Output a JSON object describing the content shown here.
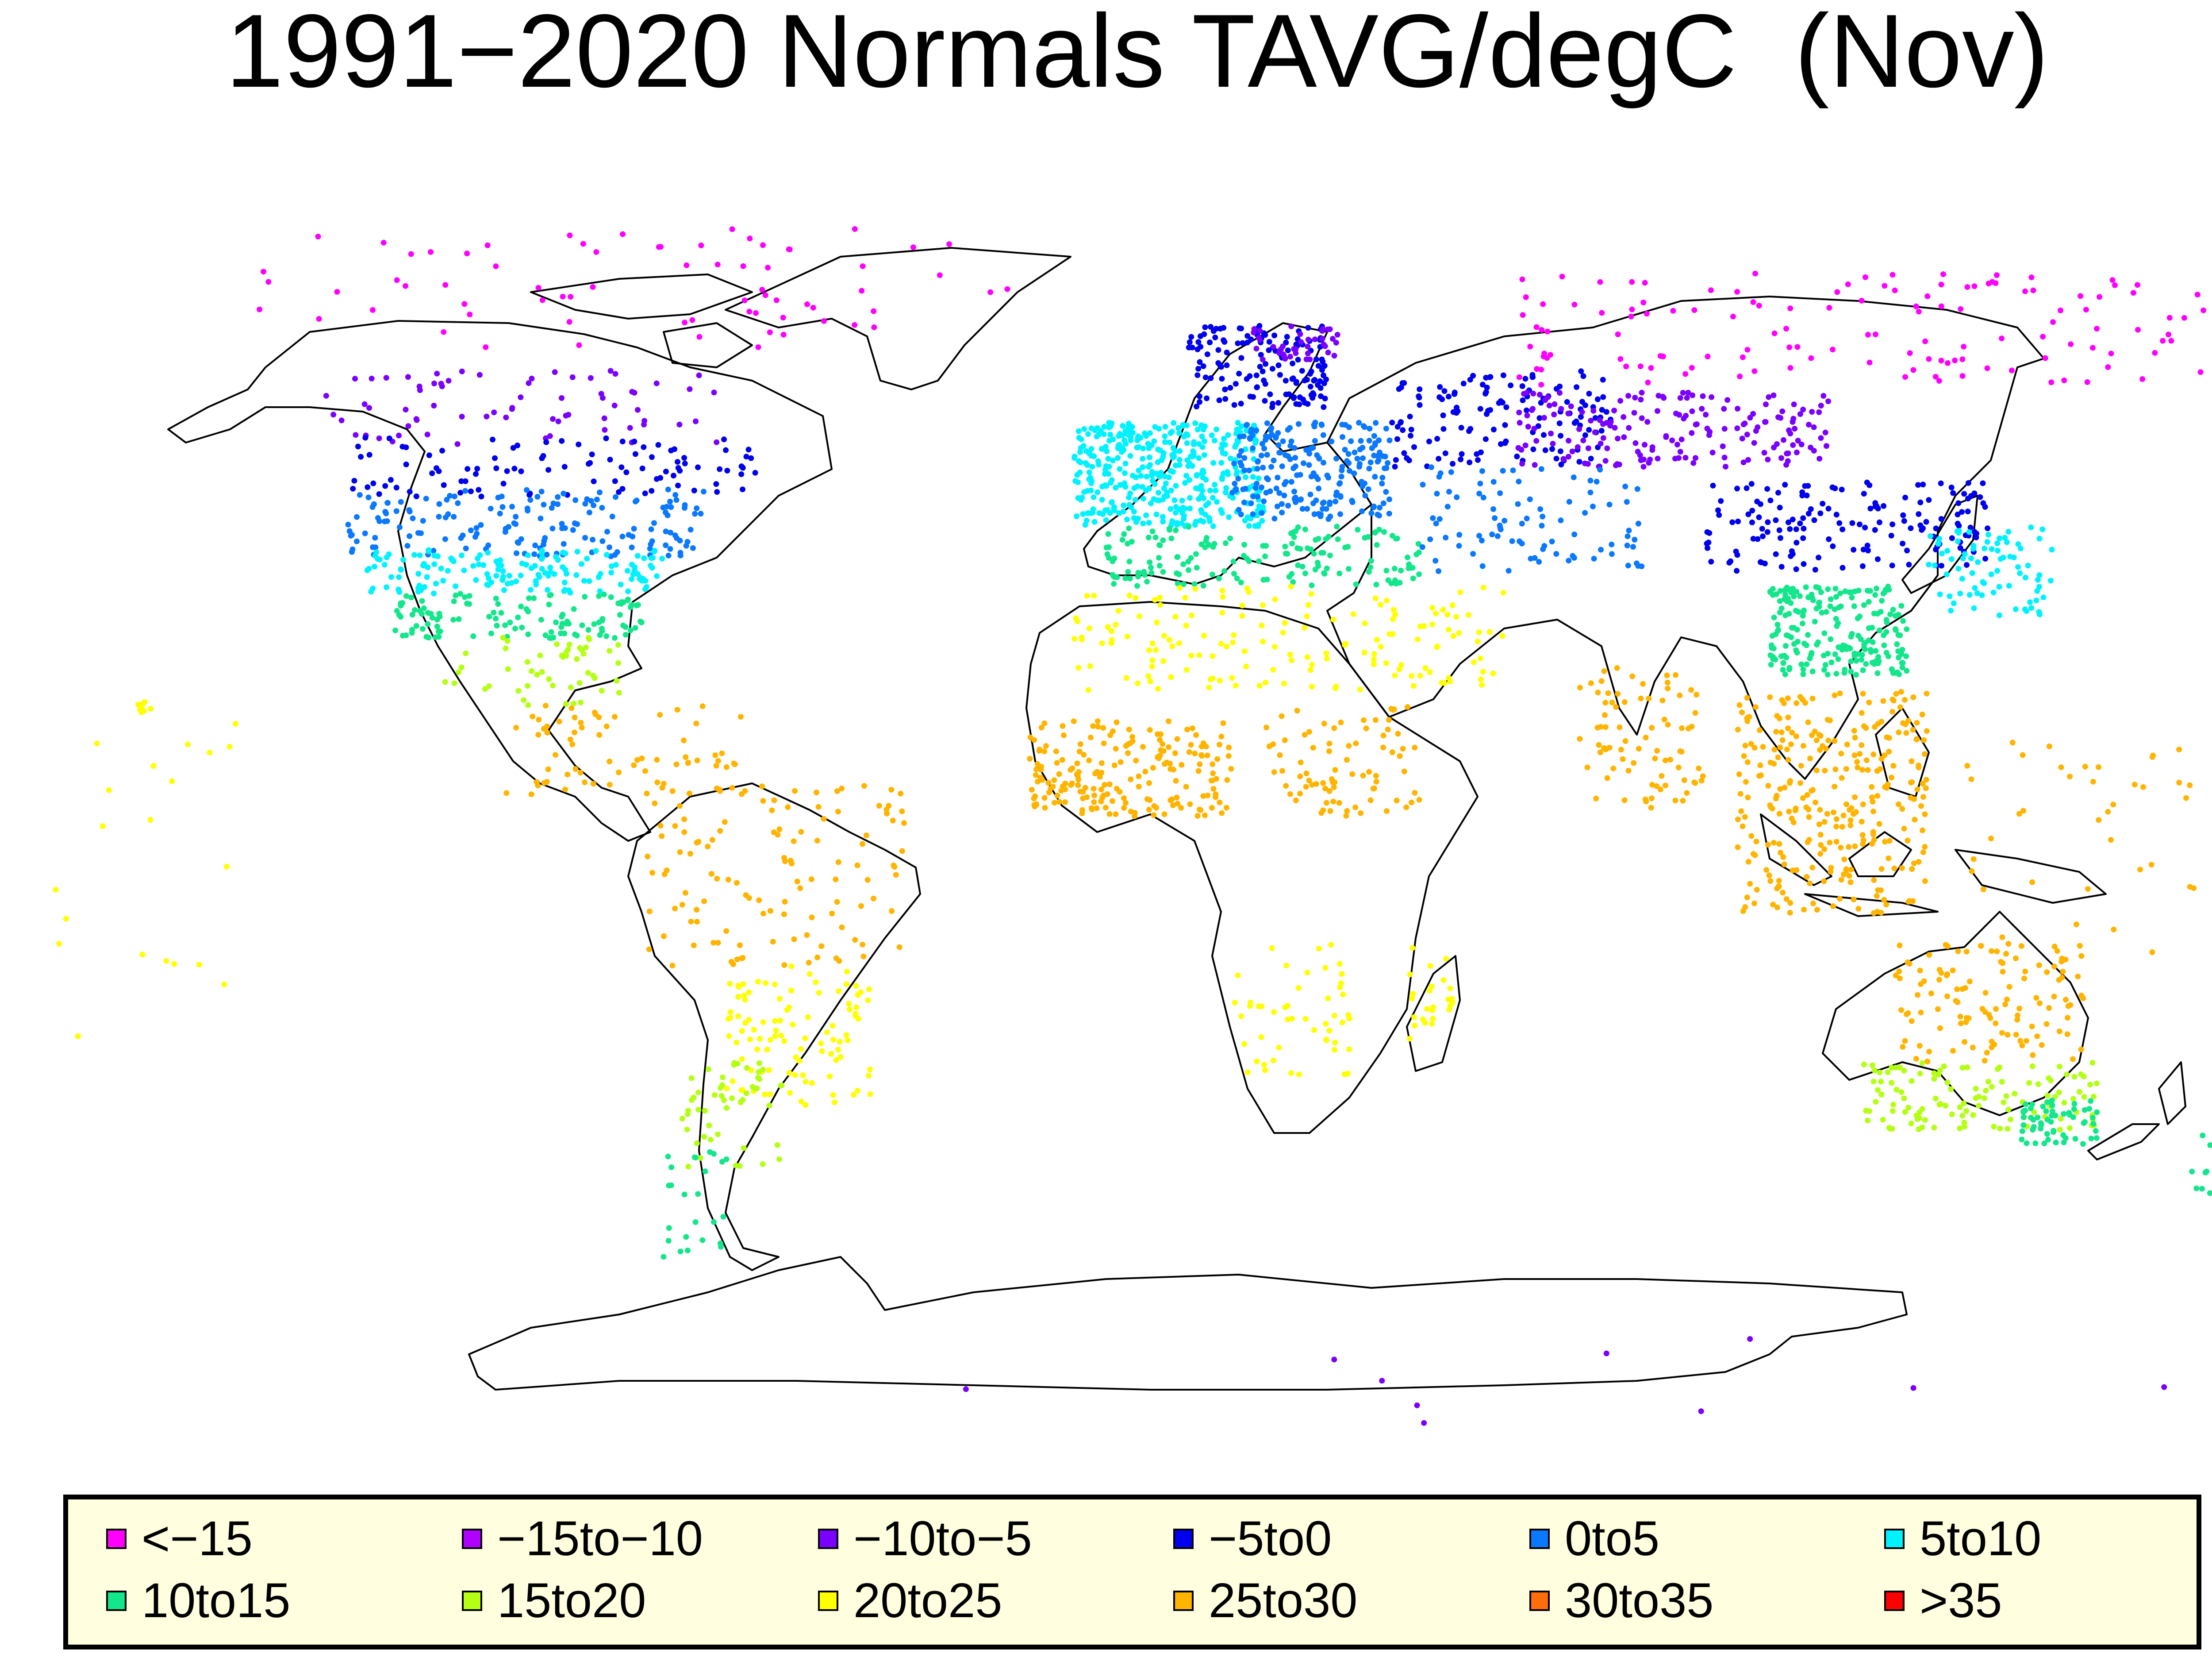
{
  "title": "1991−2020 Normals TAVG/degC  (Nov)",
  "legend": {
    "items": [
      {
        "label": "<−15",
        "color": "#ff00ff"
      },
      {
        "label": "−15to−10",
        "color": "#b000ff"
      },
      {
        "label": "−10to−5",
        "color": "#7a00ff"
      },
      {
        "label": "−5to0",
        "color": "#0000ee"
      },
      {
        "label": "0to5",
        "color": "#0a78ff"
      },
      {
        "label": "5to10",
        "color": "#00f2ff"
      },
      {
        "label": "10to15",
        "color": "#14e68c"
      },
      {
        "label": "15to20",
        "color": "#b4ff14"
      },
      {
        "label": "20to25",
        "color": "#ffff00"
      },
      {
        "label": "25to30",
        "color": "#ffb400"
      },
      {
        "label": "30to35",
        "color": "#ff6e0a"
      },
      {
        "label": ">35",
        "color": "#ff0000"
      }
    ]
  },
  "map": {
    "projection": "equirectangular-like world map",
    "lon_range": [
      -180,
      180
    ],
    "lat_range": [
      -85,
      85
    ],
    "station_groups": [
      {
        "region": "Arctic Canada / Greenland",
        "bin": "<−15",
        "lon": [
          -140,
          -20
        ],
        "lat": [
          68,
          84
        ],
        "count": 70
      },
      {
        "region": "Northern Canada",
        "bin": "−10to−5",
        "lon": [
          -130,
          -65
        ],
        "lat": [
          55,
          65
        ],
        "count": 70
      },
      {
        "region": "Southern Canada",
        "bin": "−5to0",
        "lon": [
          -125,
          -60
        ],
        "lat": [
          48,
          56
        ],
        "count": 100
      },
      {
        "region": "Northern USA",
        "bin": "0to5",
        "lon": [
          -125,
          -68
        ],
        "lat": [
          40,
          49
        ],
        "count": 170
      },
      {
        "region": "Central USA",
        "bin": "5to10",
        "lon": [
          -122,
          -75
        ],
        "lat": [
          35,
          41
        ],
        "count": 150
      },
      {
        "region": "Southern USA",
        "bin": "10to15",
        "lon": [
          -118,
          -78
        ],
        "lat": [
          29,
          35
        ],
        "count": 120
      },
      {
        "region": "Gulf coast / Mexico",
        "bin": "15to20",
        "lon": [
          -110,
          -82
        ],
        "lat": [
          20,
          30
        ],
        "count": 50
      },
      {
        "region": "Central America / Caribbean",
        "bin": "25to30",
        "lon": [
          -100,
          -62
        ],
        "lat": [
          8,
          20
        ],
        "count": 70
      },
      {
        "region": "Northern South America",
        "bin": "25to30",
        "lon": [
          -78,
          -36
        ],
        "lat": [
          -15,
          10
        ],
        "count": 120
      },
      {
        "region": "Southeast South America",
        "bin": "20to25",
        "lon": [
          -65,
          -42
        ],
        "lat": [
          -34,
          -15
        ],
        "count": 100
      },
      {
        "region": "Southern South America",
        "bin": "15to20",
        "lon": [
          -72,
          -56
        ],
        "lat": [
          -42,
          -28
        ],
        "count": 50
      },
      {
        "region": "Patagonia",
        "bin": "10to15",
        "lon": [
          -75,
          -64
        ],
        "lat": [
          -55,
          -40
        ],
        "count": 25
      },
      {
        "region": "Scandinavia",
        "bin": "−5to0",
        "lon": [
          8,
          30
        ],
        "lat": [
          60,
          71
        ],
        "count": 150
      },
      {
        "region": "Northern Scandinavia",
        "bin": "−10to−5",
        "lon": [
          18,
          32
        ],
        "lat": [
          66,
          71
        ],
        "count": 40
      },
      {
        "region": "Western Europe",
        "bin": "5to10",
        "lon": [
          -10,
          20
        ],
        "lat": [
          44,
          58
        ],
        "count": 400
      },
      {
        "region": "Central / Eastern Europe",
        "bin": "0to5",
        "lon": [
          15,
          40
        ],
        "lat": [
          45,
          58
        ],
        "count": 220
      },
      {
        "region": "Mediterranean / Black Sea",
        "bin": "10to15",
        "lon": [
          -5,
          45
        ],
        "lat": [
          36,
          44
        ],
        "count": 160
      },
      {
        "region": "North Africa / Middle East",
        "bin": "20to25",
        "lon": [
          -10,
          58
        ],
        "lat": [
          22,
          36
        ],
        "count": 160
      },
      {
        "region": "Western Russia",
        "bin": "−5to0",
        "lon": [
          40,
          75
        ],
        "lat": [
          52,
          65
        ],
        "count": 140
      },
      {
        "region": "Central Siberia",
        "bin": "−10to−5",
        "lon": [
          60,
          110
        ],
        "lat": [
          52,
          62
        ],
        "count": 180
      },
      {
        "region": "Northern Siberia",
        "bin": "<−15",
        "lon": [
          60,
          170
        ],
        "lat": [
          63,
          78
        ],
        "count": 130
      },
      {
        "region": "Central Asia",
        "bin": "0to5",
        "lon": [
          45,
          80
        ],
        "lat": [
          38,
          52
        ],
        "count": 90
      },
      {
        "region": "Mongolia / NE China",
        "bin": "−5to0",
        "lon": [
          90,
          135
        ],
        "lat": [
          38,
          50
        ],
        "count": 160
      },
      {
        "region": "Central / Southern China",
        "bin": "10to15",
        "lon": [
          100,
          122
        ],
        "lat": [
          24,
          36
        ],
        "count": 220
      },
      {
        "region": "Japan / Korea",
        "bin": "5to10",
        "lon": [
          125,
          145
        ],
        "lat": [
          32,
          44
        ],
        "count": 80
      },
      {
        "region": "West Africa / Sahel",
        "bin": "25to30",
        "lon": [
          -17,
          15
        ],
        "lat": [
          5,
          18
        ],
        "count": 200
      },
      {
        "region": "East Africa / Sudan",
        "bin": "25to30",
        "lon": [
          20,
          45
        ],
        "lat": [
          5,
          20
        ],
        "count": 80
      },
      {
        "region": "Southern Africa",
        "bin": "20to25",
        "lon": [
          15,
          34
        ],
        "lat": [
          -30,
          -12
        ],
        "count": 50
      },
      {
        "region": "Madagascar",
        "bin": "20to25",
        "lon": [
          43,
          50
        ],
        "lat": [
          -25,
          -12
        ],
        "count": 25
      },
      {
        "region": "India / Sri Lanka",
        "bin": "25to30",
        "lon": [
          70,
          90
        ],
        "lat": [
          6,
          25
        ],
        "count": 80
      },
      {
        "region": "Southeast Asia",
        "bin": "25to30",
        "lon": [
          95,
          125
        ],
        "lat": [
          -8,
          22
        ],
        "count": 300
      },
      {
        "region": "Western Pacific islands",
        "bin": "25to30",
        "lon": [
          130,
          178
        ],
        "lat": [
          -15,
          15
        ],
        "count": 40
      },
      {
        "region": "Northern / Central Australia",
        "bin": "25to30",
        "lon": [
          120,
          150
        ],
        "lat": [
          -28,
          -12
        ],
        "count": 120
      },
      {
        "region": "Southern Australia",
        "bin": "15to20",
        "lon": [
          115,
          152
        ],
        "lat": [
          -37,
          -28
        ],
        "count": 120
      },
      {
        "region": "Southeast Australia",
        "bin": "10to15",
        "lon": [
          140,
          152
        ],
        "lat": [
          -39,
          -33
        ],
        "count": 60
      },
      {
        "region": "New Zealand",
        "bin": "10to15",
        "lon": [
          166,
          178
        ],
        "lat": [
          -47,
          -35
        ],
        "count": 25
      },
      {
        "region": "Eastern Pacific islands",
        "bin": "20to25",
        "lon": [
          -175,
          -140
        ],
        "lat": [
          -25,
          20
        ],
        "count": 20
      },
      {
        "region": "Hawaii",
        "bin": "20to25",
        "lon": [
          -160,
          -154
        ],
        "lat": [
          19,
          22
        ],
        "count": 8
      },
      {
        "region": "Antarctica",
        "bin": "−10to−5",
        "lon": [
          -70,
          170
        ],
        "lat": [
          -78,
          -64
        ],
        "count": 10
      }
    ]
  }
}
